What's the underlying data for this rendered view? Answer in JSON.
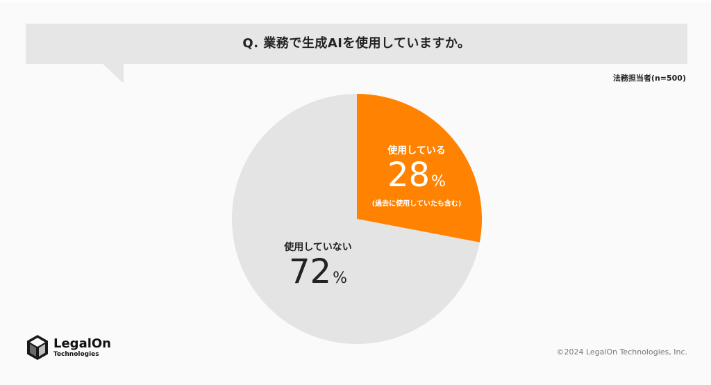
{
  "question": "Q. 業務で生成AIを使用していますか。",
  "sample_note": "法務担当者(n=500)",
  "chart_data": {
    "type": "pie",
    "title": "Q. 業務で生成AIを使用していますか。",
    "categories": [
      "使用している",
      "使用していない"
    ],
    "values": [
      28,
      72
    ],
    "unit": "%",
    "colors": [
      "#ff8200",
      "#e4e4e4"
    ],
    "annotations": [
      "(過去に使用していたも含む)"
    ]
  },
  "labels": {
    "used": {
      "category": "使用している",
      "value": "28",
      "unit": "%",
      "note": "(過去に使用していたも含む)"
    },
    "not_used": {
      "category": "使用していない",
      "value": "72",
      "unit": "%"
    }
  },
  "brand": {
    "name": "LegalOn",
    "sub": "Technologies",
    "icon": "legalon-logo-icon"
  },
  "copyright": "©2024 LegalOn Technologies, Inc."
}
